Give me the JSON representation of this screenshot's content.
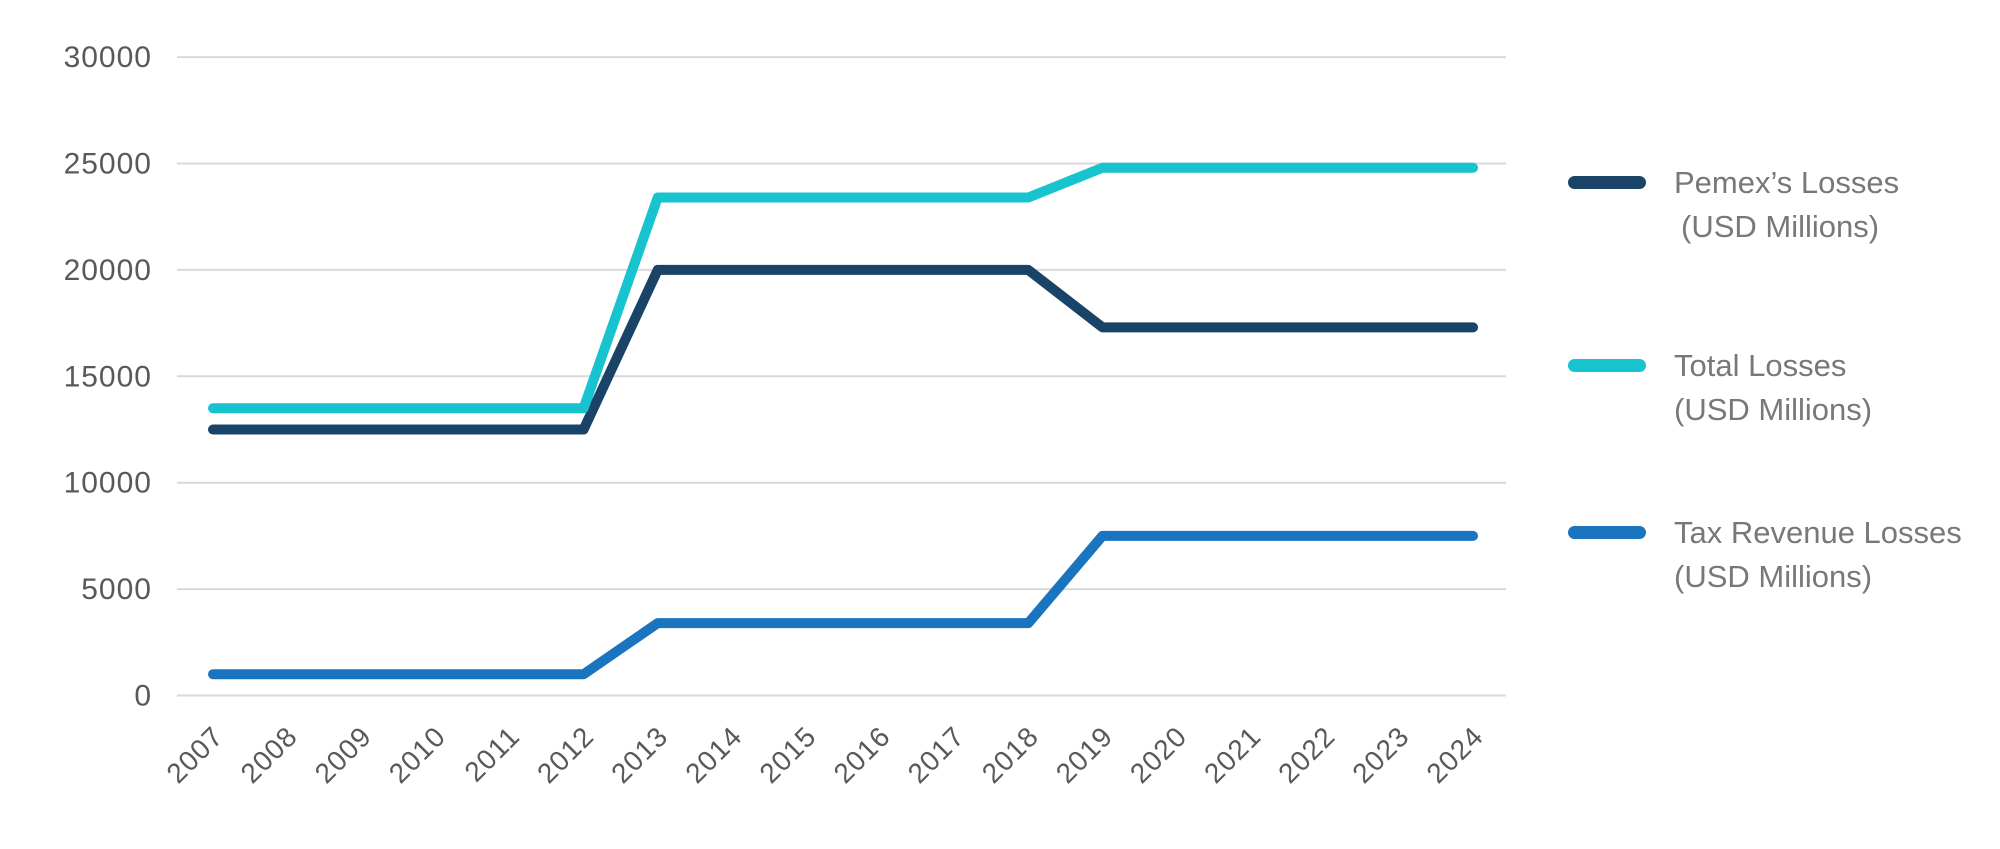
{
  "chart_data": {
    "type": "line",
    "title": "",
    "xlabel": "",
    "ylabel": "",
    "x": [
      "2007",
      "2008",
      "2009",
      "2010",
      "2011",
      "2012",
      "2013",
      "2014",
      "2015",
      "2016",
      "2017",
      "2018",
      "2019",
      "2020",
      "2021",
      "2022",
      "2023",
      "2024"
    ],
    "ylim": [
      0,
      30000
    ],
    "yticks": [
      0,
      5000,
      10000,
      15000,
      20000,
      25000,
      30000
    ],
    "grid": true,
    "legend_position": "right",
    "series": [
      {
        "name": "Pemex’s Losses (USD Millions)",
        "color": "#1a4368",
        "values": [
          12500,
          12500,
          12500,
          12500,
          12500,
          12500,
          20000,
          20000,
          20000,
          20000,
          20000,
          20000,
          17300,
          17300,
          17300,
          17300,
          17300,
          17300
        ]
      },
      {
        "name": "Total Losses (USD Millions)",
        "color": "#17c3cf",
        "values": [
          13500,
          13500,
          13500,
          13500,
          13500,
          13500,
          23400,
          23400,
          23400,
          23400,
          23400,
          23400,
          24800,
          24800,
          24800,
          24800,
          24800,
          24800
        ]
      },
      {
        "name": "Tax Revenue Losses (USD Millions)",
        "color": "#1b74c0",
        "values": [
          1000,
          1000,
          1000,
          1000,
          1000,
          1000,
          3400,
          3400,
          3400,
          3400,
          3400,
          3400,
          7500,
          7500,
          7500,
          7500,
          7500,
          7500
        ]
      }
    ]
  },
  "legend": {
    "items": [
      {
        "line1": "Pemex’s Losses",
        "line2": "(USD Millions)"
      },
      {
        "line1": "Total Losses",
        "line2": "(USD Millions)"
      },
      {
        "line1": "Tax Revenue Losses",
        "line2": "(USD Millions)"
      }
    ]
  },
  "colors": {
    "navy": "#1a4368",
    "cyan": "#17c3cf",
    "blue": "#1b74c0",
    "gridline": "#d9d9d9",
    "axis_text": "#58595b",
    "legend_text": "#77787b",
    "background": "#ffffff"
  }
}
